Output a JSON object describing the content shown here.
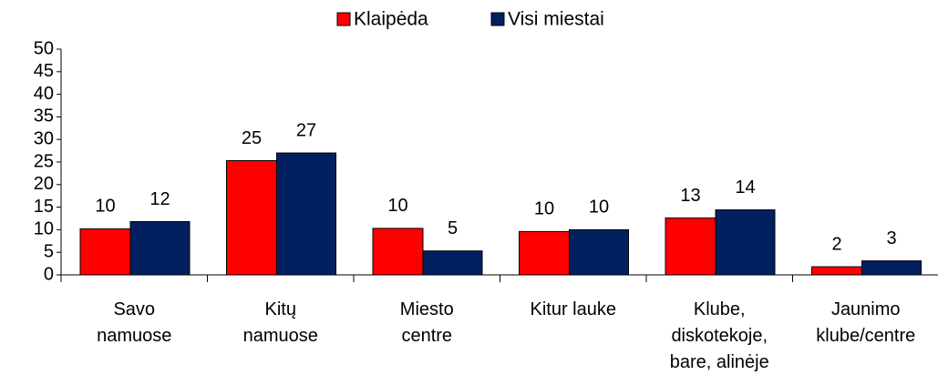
{
  "chart_data": {
    "type": "bar",
    "categories": [
      "Savo namuose",
      "Kitų namuose",
      "Miesto centre",
      "Kitur lauke",
      "Klube, diskotekoje, bare, alinėje",
      "Jaunimo klube/centre"
    ],
    "series": [
      {
        "name": "Klaipėda",
        "color": "#ff0000",
        "values": [
          10.2,
          25.3,
          10.3,
          9.6,
          12.6,
          1.8
        ],
        "value_labels": [
          "10",
          "25",
          "10",
          "10",
          "13",
          "2"
        ]
      },
      {
        "name": "Visi miestai",
        "color": "#002060",
        "values": [
          11.8,
          27,
          5.3,
          10,
          14.4,
          3.1
        ],
        "value_labels": [
          "12",
          "27",
          "5",
          "10",
          "14",
          "3"
        ]
      }
    ],
    "ylim": [
      0,
      50
    ],
    "yticks": [
      0,
      5,
      10,
      15,
      20,
      25,
      30,
      35,
      40,
      45,
      50
    ],
    "legend": "top"
  }
}
